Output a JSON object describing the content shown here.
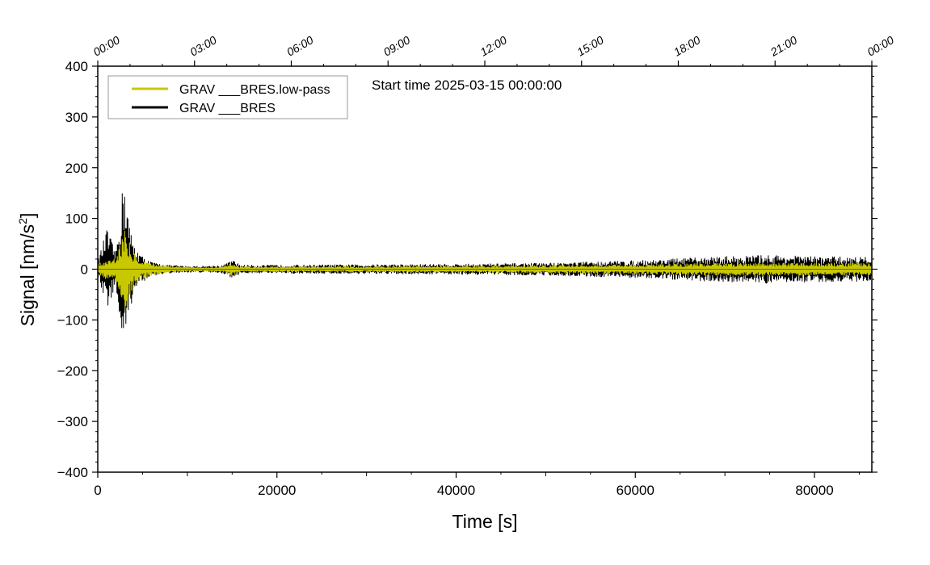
{
  "chart_data": {
    "type": "line",
    "xlabel": "Time [s]",
    "ylabel_prefix": "Signal [nm/s",
    "ylabel_sup": "2",
    "ylabel_suffix": "]",
    "annotation": "Start time 2025-03-15 00:00:00",
    "xlim": [
      0,
      86400
    ],
    "ylim": [
      -400,
      400
    ],
    "x_ticks": [
      0,
      20000,
      40000,
      60000,
      80000
    ],
    "x_tick_labels": [
      "0",
      "20000",
      "40000",
      "60000",
      "80000"
    ],
    "y_ticks": [
      400,
      300,
      200,
      100,
      0,
      -100,
      -200,
      -300,
      -400
    ],
    "y_tick_labels": [
      "400",
      "300",
      "200",
      "100",
      "0",
      "−100",
      "−200",
      "−300",
      "−400"
    ],
    "top_axis_ticks": [
      0,
      10800,
      21600,
      32400,
      43200,
      54000,
      64800,
      75600,
      86400
    ],
    "top_axis_labels": [
      "00:00",
      "03:00",
      "06:00",
      "09:00",
      "12:00",
      "15:00",
      "18:00",
      "21:00",
      "00:00"
    ],
    "legend_position": "top-left",
    "grid": false,
    "series": [
      {
        "name": "GRAV ___BRES.low-pass",
        "color": "#c8c800",
        "envelope": {
          "x": [
            0,
            1000,
            2000,
            2700,
            3000,
            3500,
            4000,
            5000,
            6000,
            7000,
            8000,
            10000,
            12000,
            14000,
            15000,
            16000,
            20000,
            30000,
            40000,
            50000,
            60000,
            66000,
            70000,
            75000,
            80000,
            86400
          ],
          "amplitude": [
            10,
            20,
            25,
            65,
            85,
            55,
            35,
            18,
            12,
            9,
            6,
            4,
            4,
            5,
            14,
            5,
            5,
            5,
            6,
            7,
            9,
            11,
            12,
            12,
            12,
            12
          ]
        }
      },
      {
        "name": "GRAV ___BRES",
        "color": "#000000",
        "envelope": {
          "x": [
            0,
            1000,
            2000,
            2700,
            3000,
            3500,
            4000,
            5000,
            6000,
            7000,
            8000,
            10000,
            12000,
            14000,
            15000,
            16000,
            20000,
            30000,
            40000,
            50000,
            60000,
            66000,
            70000,
            75000,
            80000,
            86400
          ],
          "amplitude": [
            15,
            80,
            35,
            150,
            200,
            90,
            50,
            25,
            14,
            10,
            8,
            6,
            6,
            8,
            18,
            8,
            8,
            9,
            10,
            12,
            17,
            22,
            25,
            28,
            25,
            24
          ]
        }
      }
    ]
  }
}
